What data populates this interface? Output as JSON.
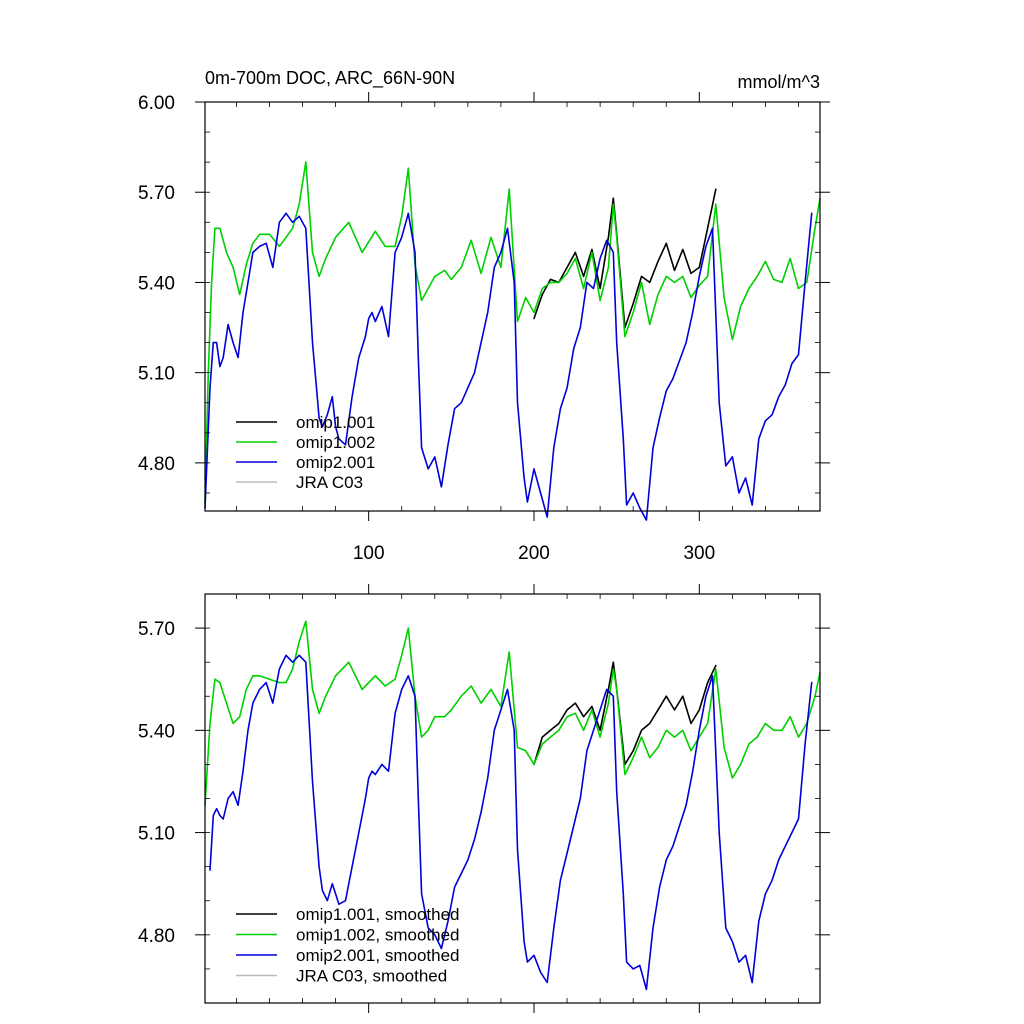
{
  "chart_data": [
    {
      "type": "line",
      "title": "0m-700m DOC, ARC_66N-90N",
      "units_label": "mmol/m^3",
      "xlim": [
        1,
        373
      ],
      "ylim": [
        4.64,
        6.0
      ],
      "yticks": [
        4.8,
        5.1,
        5.4,
        5.7,
        6.0
      ],
      "ytick_labels": [
        "4.80",
        "5.10",
        "5.40",
        "5.70",
        "6.00"
      ],
      "xticks": [
        100,
        200,
        300
      ],
      "xtick_labels": [
        "100",
        "200",
        "300"
      ],
      "legend": [
        "omip1.001",
        "omip1.002",
        "omip2.001",
        "JRA C03"
      ],
      "series": [
        {
          "name": "omip1.001",
          "color": "#000000",
          "x": [
            200,
            205,
            210,
            215,
            220,
            225,
            230,
            235,
            240,
            245,
            248,
            250,
            255,
            260,
            265,
            270,
            275,
            280,
            285,
            290,
            295,
            300,
            305,
            310
          ],
          "values": [
            5.28,
            5.36,
            5.41,
            5.4,
            5.45,
            5.5,
            5.42,
            5.51,
            5.38,
            5.55,
            5.68,
            5.56,
            5.25,
            5.33,
            5.42,
            5.4,
            5.47,
            5.53,
            5.44,
            5.51,
            5.43,
            5.45,
            5.58,
            5.71
          ]
        },
        {
          "name": "omip1.002",
          "color": "#00d000",
          "x": [
            1,
            3,
            5,
            7,
            10,
            14,
            18,
            22,
            26,
            30,
            34,
            40,
            46,
            50,
            54,
            58,
            62,
            66,
            70,
            74,
            80,
            88,
            96,
            104,
            110,
            116,
            120,
            124,
            128,
            132,
            136,
            140,
            146,
            150,
            156,
            162,
            168,
            174,
            180,
            185,
            190,
            195,
            200,
            205,
            210,
            215,
            220,
            225,
            230,
            235,
            240,
            245,
            248,
            250,
            255,
            260,
            265,
            270,
            275,
            280,
            285,
            290,
            295,
            300,
            305,
            310,
            315,
            320,
            325,
            330,
            335,
            340,
            345,
            350,
            355,
            360,
            365,
            370,
            373
          ],
          "values": [
            4.67,
            5.1,
            5.4,
            5.58,
            5.58,
            5.5,
            5.45,
            5.36,
            5.46,
            5.53,
            5.56,
            5.56,
            5.52,
            5.55,
            5.58,
            5.66,
            5.8,
            5.5,
            5.42,
            5.48,
            5.55,
            5.6,
            5.5,
            5.57,
            5.52,
            5.52,
            5.62,
            5.78,
            5.46,
            5.34,
            5.38,
            5.42,
            5.44,
            5.41,
            5.45,
            5.54,
            5.43,
            5.55,
            5.45,
            5.71,
            5.27,
            5.35,
            5.3,
            5.38,
            5.4,
            5.4,
            5.43,
            5.48,
            5.38,
            5.5,
            5.34,
            5.45,
            5.66,
            5.55,
            5.22,
            5.3,
            5.4,
            5.26,
            5.36,
            5.42,
            5.4,
            5.42,
            5.35,
            5.39,
            5.42,
            5.66,
            5.35,
            5.21,
            5.32,
            5.38,
            5.42,
            5.47,
            5.41,
            5.4,
            5.48,
            5.38,
            5.4,
            5.58,
            5.68
          ]
        },
        {
          "name": "omip2.001",
          "color": "#0000d8",
          "x": [
            1,
            4,
            6,
            8,
            10,
            12,
            15,
            18,
            21,
            24,
            27,
            30,
            34,
            38,
            42,
            46,
            50,
            54,
            58,
            62,
            66,
            70,
            72,
            75,
            78,
            80,
            82,
            86,
            90,
            94,
            98,
            100,
            102,
            104,
            108,
            112,
            116,
            120,
            124,
            128,
            130,
            132,
            136,
            140,
            144,
            148,
            152,
            156,
            160,
            164,
            168,
            172,
            176,
            180,
            184,
            188,
            190,
            194,
            196,
            200,
            204,
            208,
            212,
            216,
            220,
            224,
            228,
            232,
            236,
            240,
            244,
            248,
            250,
            254,
            256,
            260,
            264,
            268,
            272,
            276,
            280,
            284,
            288,
            292,
            296,
            300,
            304,
            308,
            312,
            316,
            320,
            324,
            328,
            332,
            336,
            340,
            344,
            348,
            352,
            356,
            360,
            364,
            368
          ],
          "values": [
            4.65,
            5.05,
            5.2,
            5.2,
            5.12,
            5.15,
            5.26,
            5.2,
            5.15,
            5.3,
            5.4,
            5.5,
            5.52,
            5.53,
            5.45,
            5.6,
            5.63,
            5.6,
            5.62,
            5.58,
            5.2,
            4.95,
            4.92,
            4.96,
            5.02,
            4.92,
            4.88,
            4.86,
            5.02,
            5.15,
            5.22,
            5.28,
            5.3,
            5.27,
            5.32,
            5.22,
            5.5,
            5.55,
            5.63,
            5.5,
            5.15,
            4.85,
            4.78,
            4.82,
            4.72,
            4.86,
            4.98,
            5.0,
            5.05,
            5.1,
            5.2,
            5.3,
            5.45,
            5.5,
            5.58,
            5.4,
            5.0,
            4.75,
            4.67,
            4.78,
            4.7,
            4.62,
            4.85,
            4.98,
            5.05,
            5.18,
            5.25,
            5.4,
            5.38,
            5.48,
            5.54,
            5.5,
            5.2,
            4.88,
            4.66,
            4.7,
            4.65,
            4.61,
            4.85,
            4.95,
            5.04,
            5.08,
            5.14,
            5.2,
            5.3,
            5.42,
            5.52,
            5.58,
            5.0,
            4.79,
            4.82,
            4.7,
            4.75,
            4.66,
            4.88,
            4.94,
            4.96,
            5.02,
            5.06,
            5.13,
            5.16,
            5.4,
            5.63
          ]
        },
        {
          "name": "JRA C03",
          "color": "#bbbbbb",
          "x": [],
          "values": []
        }
      ]
    },
    {
      "type": "line",
      "title": "",
      "xlim": [
        1,
        373
      ],
      "ylim": [
        4.6,
        5.8
      ],
      "yticks": [
        4.8,
        5.1,
        5.4,
        5.7
      ],
      "ytick_labels": [
        "4.80",
        "5.10",
        "5.40",
        "5.70"
      ],
      "xticks": [
        100,
        200,
        300
      ],
      "xtick_labels": [
        "",
        "",
        ""
      ],
      "legend": [
        "omip1.001, smoothed",
        "omip1.002, smoothed",
        "omip2.001, smoothed",
        "JRA C03, smoothed"
      ],
      "series": [
        {
          "name": "omip1.001, smoothed",
          "color": "#000000",
          "x": [
            200,
            205,
            210,
            215,
            220,
            225,
            230,
            235,
            240,
            245,
            248,
            250,
            255,
            260,
            265,
            270,
            275,
            280,
            285,
            290,
            295,
            300,
            305,
            310
          ],
          "values": [
            5.3,
            5.38,
            5.4,
            5.42,
            5.46,
            5.48,
            5.44,
            5.47,
            5.4,
            5.52,
            5.6,
            5.52,
            5.3,
            5.34,
            5.4,
            5.42,
            5.46,
            5.5,
            5.46,
            5.5,
            5.42,
            5.46,
            5.54,
            5.59
          ]
        },
        {
          "name": "omip1.002, smoothed",
          "color": "#00d000",
          "x": [
            1,
            4,
            7,
            10,
            14,
            18,
            22,
            26,
            30,
            34,
            40,
            46,
            50,
            54,
            58,
            62,
            66,
            70,
            74,
            80,
            88,
            96,
            104,
            110,
            116,
            120,
            124,
            128,
            132,
            136,
            140,
            146,
            150,
            156,
            162,
            168,
            174,
            180,
            185,
            190,
            195,
            200,
            205,
            210,
            215,
            220,
            225,
            230,
            235,
            240,
            245,
            248,
            250,
            255,
            260,
            265,
            270,
            275,
            280,
            285,
            290,
            295,
            300,
            305,
            310,
            315,
            320,
            325,
            330,
            335,
            340,
            345,
            350,
            355,
            360,
            365,
            370,
            373
          ],
          "values": [
            5.18,
            5.42,
            5.55,
            5.54,
            5.48,
            5.42,
            5.44,
            5.52,
            5.56,
            5.56,
            5.55,
            5.54,
            5.54,
            5.58,
            5.66,
            5.72,
            5.52,
            5.45,
            5.5,
            5.56,
            5.6,
            5.52,
            5.56,
            5.53,
            5.55,
            5.62,
            5.7,
            5.5,
            5.38,
            5.4,
            5.44,
            5.44,
            5.46,
            5.5,
            5.53,
            5.48,
            5.52,
            5.47,
            5.63,
            5.35,
            5.34,
            5.3,
            5.36,
            5.38,
            5.4,
            5.44,
            5.45,
            5.4,
            5.46,
            5.38,
            5.48,
            5.58,
            5.52,
            5.27,
            5.32,
            5.38,
            5.32,
            5.35,
            5.4,
            5.38,
            5.4,
            5.34,
            5.38,
            5.42,
            5.58,
            5.35,
            5.26,
            5.3,
            5.36,
            5.38,
            5.42,
            5.4,
            5.4,
            5.44,
            5.38,
            5.42,
            5.5,
            5.57
          ]
        },
        {
          "name": "omip2.001, smoothed",
          "color": "#0000d8",
          "x": [
            4,
            6,
            8,
            10,
            12,
            15,
            18,
            21,
            24,
            27,
            30,
            34,
            38,
            42,
            46,
            50,
            54,
            58,
            62,
            66,
            70,
            72,
            75,
            78,
            80,
            82,
            86,
            90,
            94,
            98,
            100,
            102,
            104,
            108,
            112,
            116,
            120,
            124,
            128,
            130,
            132,
            136,
            140,
            144,
            148,
            152,
            156,
            160,
            164,
            168,
            172,
            176,
            180,
            184,
            188,
            190,
            194,
            196,
            200,
            204,
            208,
            212,
            216,
            220,
            224,
            228,
            232,
            236,
            240,
            244,
            248,
            250,
            254,
            256,
            260,
            264,
            268,
            272,
            276,
            280,
            284,
            288,
            292,
            296,
            300,
            304,
            308,
            312,
            316,
            320,
            324,
            328,
            332,
            336,
            340,
            344,
            348,
            352,
            356,
            360,
            364,
            368
          ],
          "values": [
            4.99,
            5.15,
            5.17,
            5.15,
            5.14,
            5.2,
            5.22,
            5.18,
            5.28,
            5.4,
            5.48,
            5.52,
            5.54,
            5.48,
            5.58,
            5.62,
            5.6,
            5.62,
            5.6,
            5.25,
            5.0,
            4.93,
            4.9,
            4.95,
            4.92,
            4.89,
            4.9,
            5.0,
            5.1,
            5.2,
            5.26,
            5.28,
            5.27,
            5.3,
            5.28,
            5.45,
            5.52,
            5.56,
            5.5,
            5.2,
            4.92,
            4.82,
            4.8,
            4.76,
            4.84,
            4.94,
            4.98,
            5.02,
            5.08,
            5.16,
            5.26,
            5.4,
            5.46,
            5.52,
            5.4,
            5.05,
            4.78,
            4.72,
            4.74,
            4.69,
            4.66,
            4.82,
            4.96,
            5.04,
            5.12,
            5.2,
            5.34,
            5.4,
            5.46,
            5.52,
            5.5,
            5.22,
            4.92,
            4.72,
            4.7,
            4.71,
            4.64,
            4.82,
            4.94,
            5.02,
            5.06,
            5.12,
            5.18,
            5.28,
            5.4,
            5.5,
            5.56,
            5.1,
            4.82,
            4.78,
            4.72,
            4.74,
            4.66,
            4.84,
            4.92,
            4.96,
            5.02,
            5.06,
            5.1,
            5.14,
            5.36,
            5.54
          ]
        },
        {
          "name": "JRA C03, smoothed",
          "color": "#bbbbbb",
          "x": [],
          "values": []
        }
      ]
    }
  ]
}
